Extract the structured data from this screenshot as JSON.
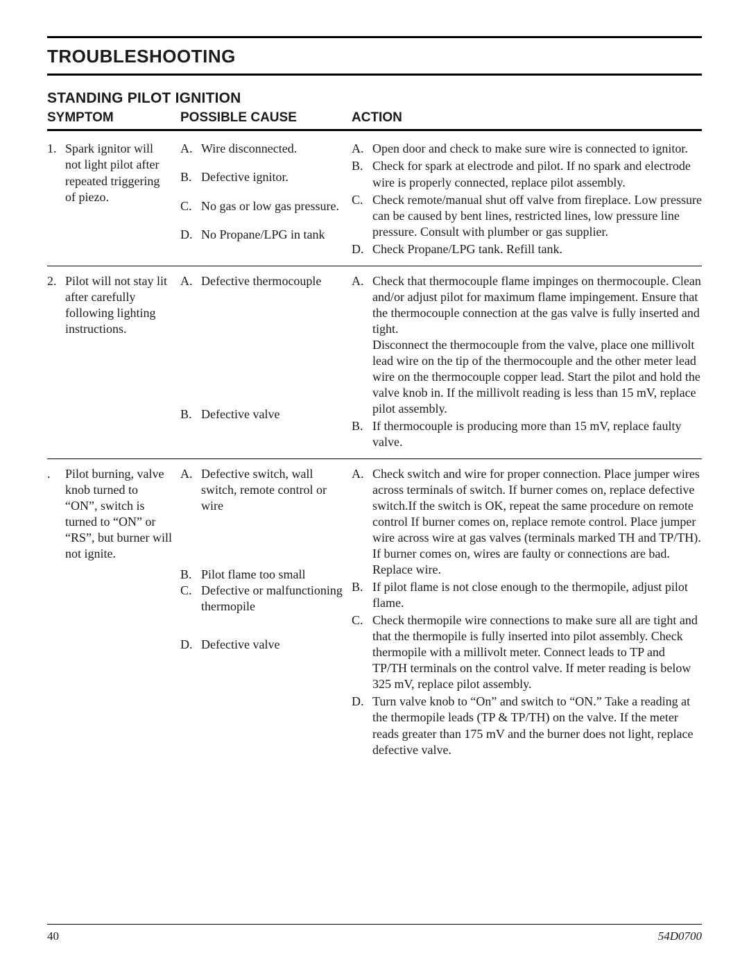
{
  "title": "TROUBLESHOOTING",
  "subtitle": "STANDING PILOT IGNITION",
  "headers": {
    "symptom": "SYMPTOM",
    "cause": "POSSIBLE CAUSE",
    "action": "ACTION"
  },
  "rows": [
    {
      "num": "1.",
      "symptom": "Spark ignitor will not light pilot after repeated triggering of piezo.",
      "causes": [
        {
          "l": "A.",
          "t": "Wire disconnected."
        },
        {
          "l": "B.",
          "t": "Defective ignitor."
        },
        {
          "l": "C.",
          "t": "No gas or low gas pressure."
        },
        {
          "l": "D.",
          "t": "No Propane/LPG in tank"
        }
      ],
      "actions": [
        {
          "l": "A.",
          "t": "Open door and check to make sure wire is connected to ignitor."
        },
        {
          "l": "B.",
          "t": "Check for spark at electrode and pilot. If no spark and electrode wire is properly connected, replace pilot assembly."
        },
        {
          "l": "C.",
          "t": "Check remote/manual shut off valve from fireplace. Low pressure can be caused by bent lines, restricted lines, low pressure line pressure. Consult with plumber or gas supplier."
        },
        {
          "l": "D.",
          "t": "Check Propane/LPG tank. Refill tank."
        }
      ]
    },
    {
      "num": "2.",
      "symptom": "Pilot will not stay lit after carefully following lighting instructions.",
      "causes": [
        {
          "l": "A.",
          "t": "Defective thermocouple"
        },
        {
          "l": "B.",
          "t": "Defective valve"
        }
      ],
      "cause_spacing": "169px",
      "actions": [
        {
          "l": "A.",
          "t": "Check that thermocouple flame impinges on thermocouple. Clean and/or adjust pilot for maximum flame impingement. Ensure that the thermocouple connection at the gas valve is fully inserted and tight.\nDisconnect the thermocouple from the valve, place one millivolt lead wire on the tip of the thermocouple and the other meter lead wire on the thermocouple copper lead. Start the pilot and hold the valve knob in. If the millivolt reading is less than 15 mV, replace pilot assembly."
        },
        {
          "l": "B.",
          "t": "If thermocouple is producing more than 15 mV, replace faulty valve."
        }
      ]
    },
    {
      "num": ".",
      "symptom": "Pilot burning, valve knob turned to “ON”, switch is turned to “ON” or “RS”, but burner will not ignite.",
      "causes": [
        {
          "l": "A.",
          "t": "Defective switch, wall switch, remote control or wire"
        },
        {
          "l": "B.",
          "t": "Pilot flame too small"
        },
        {
          "l": "C.",
          "t": "Defective or malfunctioning thermopile"
        },
        {
          "l": "D.",
          "t": "Defective valve"
        }
      ],
      "cause_spacing_list": [
        "76px",
        "0px",
        "32px",
        "0px"
      ],
      "actions": [
        {
          "l": "A.",
          "t": "Check switch and wire for proper connection. Place jumper wires across terminals of switch. If burner comes on, replace defective switch.If the switch is OK, repeat the same procedure on remote control If burner comes on, replace remote control. Place jumper wire across wire at gas valves (terminals marked TH and TP/TH). If burner comes on, wires are faulty or connections are bad. Replace wire."
        },
        {
          "l": "B.",
          "t": "If pilot flame is not close enough to the thermopile, adjust pilot flame."
        },
        {
          "l": "C.",
          "t": "Check thermopile wire connections to make sure all are tight and that the thermopile is fully inserted into pilot assembly. Check thermopile with a millivolt meter. Connect leads to TP and TP/TH terminals on the control valve. If meter reading is below 325 mV, replace pilot assembly."
        },
        {
          "l": "D.",
          "t": "Turn valve knob to “On” and switch to “ON.” Take a reading at the thermopile leads (TP & TP/TH) on the valve. If the meter reads greater than 175 mV and the burner does not light, replace defective valve."
        }
      ]
    }
  ],
  "footer": {
    "page": "40",
    "docid": "54D0700"
  }
}
